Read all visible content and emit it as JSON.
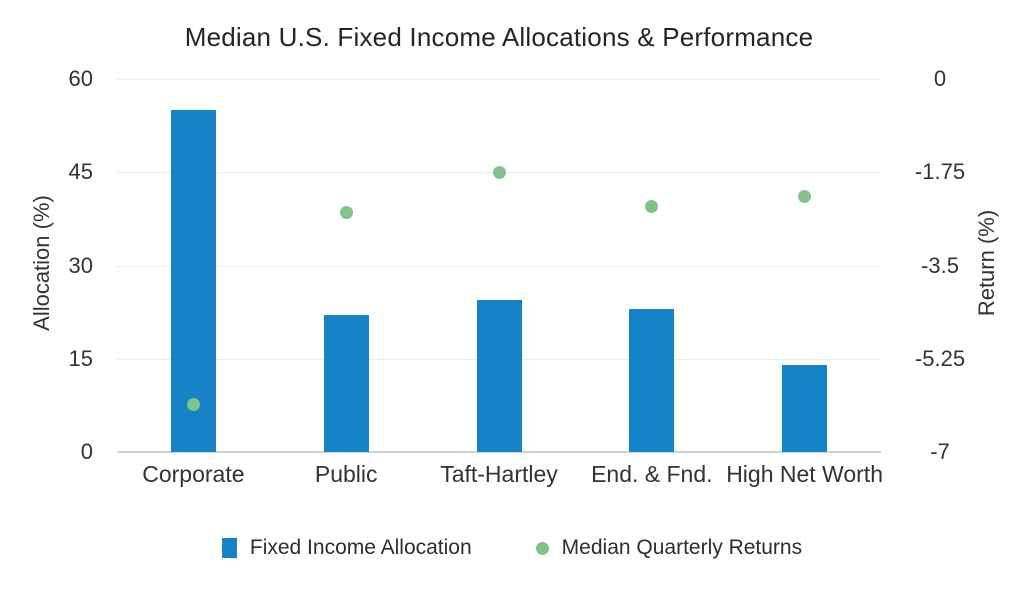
{
  "title": "Median U.S. Fixed Income Allocations & Performance",
  "chart_data": {
    "type": "bar",
    "subtype": "dual-axis bar with scatter overlay",
    "categories": [
      "Corporate",
      "Public",
      "Taft-Hartley",
      "End. & Fnd.",
      "High Net Worth"
    ],
    "series": [
      {
        "name": "Fixed Income Allocation",
        "type": "bar",
        "axis": "left",
        "color": "#1583c5",
        "values": [
          55,
          22,
          24.5,
          23,
          14
        ]
      },
      {
        "name": "Median Quarterly Returns",
        "type": "scatter",
        "axis": "right",
        "color": "#83c28c",
        "values": [
          -6.1,
          -2.5,
          -1.75,
          -2.4,
          -2.2
        ]
      }
    ],
    "left_axis": {
      "label": "Allocation (%)",
      "tick_labels": [
        "60",
        "45",
        "30",
        "15",
        "0"
      ],
      "range": [
        0,
        60
      ]
    },
    "right_axis": {
      "label": "Return (%)",
      "tick_labels": [
        "0",
        "-1.75",
        "-3.5",
        "-5.25",
        "-7"
      ],
      "range": [
        -7,
        0
      ]
    },
    "grid": true,
    "legend_position": "bottom",
    "background": "#ffffff"
  },
  "legend": {
    "items": [
      {
        "label": "Fixed Income Allocation",
        "marker": "square",
        "color": "#1583c5"
      },
      {
        "label": "Median Quarterly Returns",
        "marker": "dot",
        "color": "#83c28c"
      }
    ]
  }
}
